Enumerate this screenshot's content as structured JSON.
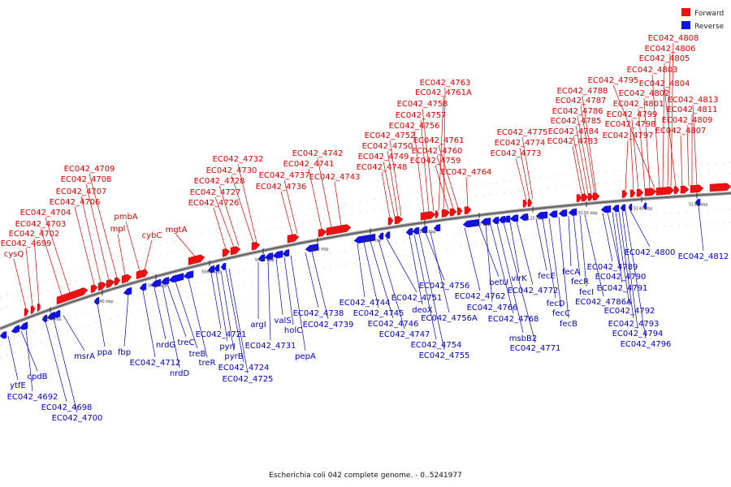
{
  "caption": "Escherichia coli 042 complete genome. - 0..5241977",
  "legend": [
    {
      "label": "Forward",
      "color": "#ee1111"
    },
    {
      "label": "Reverse",
      "color": "#1111ee"
    }
  ],
  "colors": {
    "forward": "#ee1111",
    "reverse": "#1111ee",
    "backbone": "#777777"
  },
  "ticks": [
    "5030 kbp",
    "5040 kbp",
    "5050 kbp",
    "5060 kbp",
    "5070 kbp",
    "5080 kbp",
    "5090 kbp",
    "5100 kbp",
    "5110 kbp",
    "5120 kbp",
    "5130 kbp",
    "5140 kbp",
    "5150 kbp"
  ],
  "forward_genes": [
    "cysQ",
    "EC042_4699",
    "EC042_4702",
    "EC042_4703",
    "EC042_4704",
    "EC042_4706",
    "EC042_4707",
    "EC042_4708",
    "EC042_4709",
    "mpl",
    "pmbA",
    "cybC",
    "mgtA",
    "EC042_4726",
    "EC042_4727",
    "EC042_4728",
    "EC042_4730",
    "EC042_4732",
    "EC042_4736",
    "EC042_4737",
    "EC042_4741",
    "EC042_4742",
    "EC042_4743",
    "EC042_4748",
    "EC042_4749",
    "EC042_4750",
    "EC042_4752",
    "EC042_4756",
    "EC042_4757",
    "EC042_4758",
    "EC042_4761A",
    "EC042_4763",
    "EC042_4759",
    "EC042_4760",
    "EC042_4761",
    "EC042_4764",
    "EC042_4773",
    "EC042_4774",
    "EC042_4775",
    "EC042_4783",
    "EC042_4784",
    "EC042_4785",
    "EC042_4786",
    "EC042_4787",
    "EC042_4788",
    "EC042_4797",
    "EC042_4798",
    "EC042_4799",
    "EC042_4801",
    "EC042_4802",
    "EC042_4795",
    "EC042_4803",
    "EC042_4805",
    "EC042_4806",
    "EC042_4808",
    "EC042_4804",
    "EC042_4807",
    "EC042_4809",
    "EC042_4811",
    "EC042_4813"
  ],
  "reverse_genes": [
    "ytfE",
    "cpdB",
    "EC042_4692",
    "EC042_4698",
    "EC042_4700",
    "msrA",
    "ppa",
    "fbp",
    "EC042_4712",
    "nrdG",
    "nrdD",
    "treC",
    "treB",
    "treR",
    "EC042_4721",
    "pyrI",
    "pyrB",
    "EC042_4724",
    "EC042_4725",
    "argI",
    "EC042_4731",
    "valS",
    "holC",
    "pepA",
    "EC042_4738",
    "EC042_4739",
    "EC042_4744",
    "EC042_4745",
    "EC042_4746",
    "EC042_4747",
    "EC042_4751",
    "deoX",
    "EC042_4754",
    "EC042_4755",
    "EC042_4756",
    "EC042_4756A",
    "EC042_4762",
    "betU",
    "EC042_4766",
    "EC042_4768",
    "msbB2",
    "EC042_4771",
    "virK",
    "EC042_4772",
    "fecE",
    "fecD",
    "fecC",
    "fecB",
    "fecA",
    "fecR",
    "fecI",
    "EC042_4786A",
    "EC042_4789",
    "EC042_4790",
    "EC042_4791",
    "EC042_4792",
    "EC042_4793",
    "EC042_4794",
    "EC042_4796",
    "EC042_4800",
    "EC042_4812"
  ]
}
